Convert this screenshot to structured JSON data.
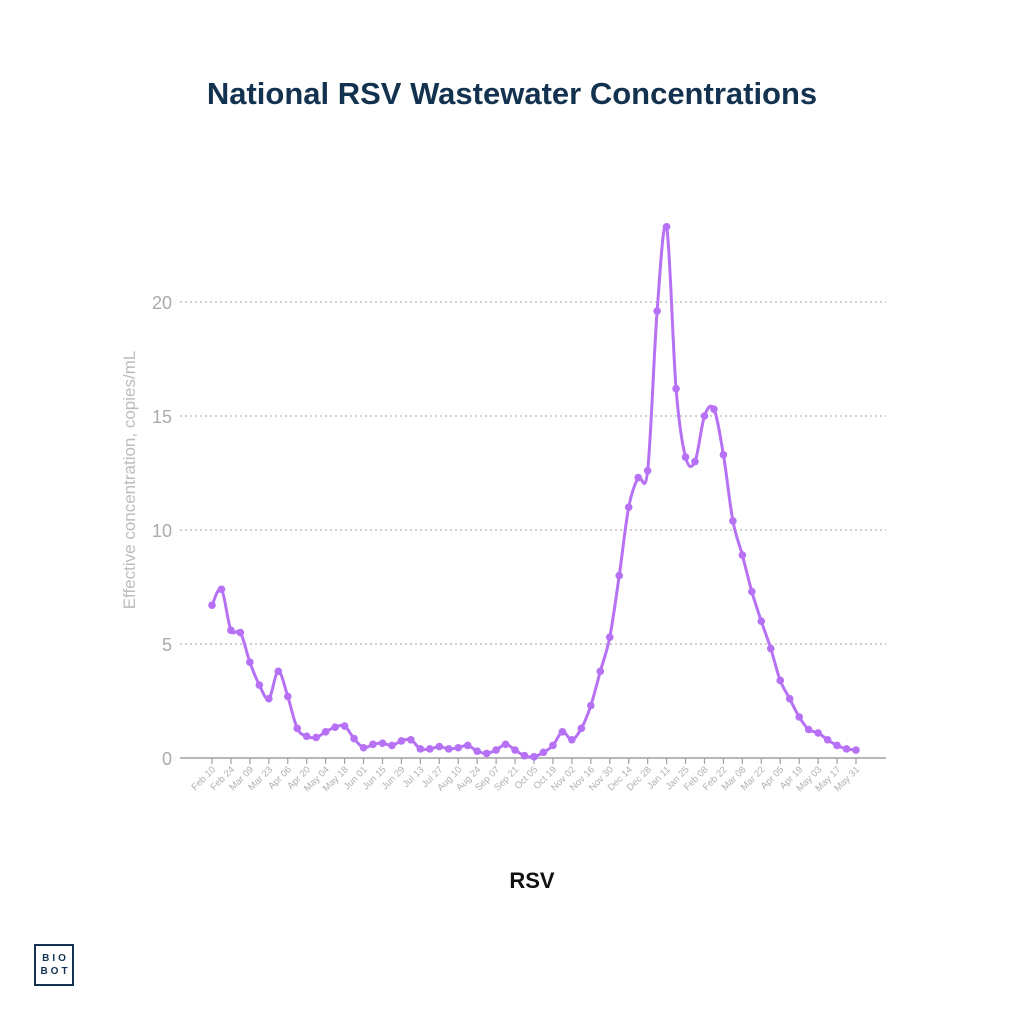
{
  "chart_data": {
    "type": "line",
    "title": "National RSV Wastewater Concentrations",
    "xlabel": "RSV",
    "ylabel": "Effective concentration, copies/mL",
    "ylim": [
      0,
      25
    ],
    "yticks": [
      0,
      5,
      10,
      15,
      20
    ],
    "grid": "horizontal dotted",
    "legend": "none",
    "line_color": "#b671f5",
    "x_tick_labels": [
      "Feb 10",
      "Feb 24",
      "Mar 09",
      "Mar 23",
      "Apr 06",
      "Apr 20",
      "May 04",
      "May 18",
      "Jun 01",
      "Jun 15",
      "Jun 29",
      "Jul 13",
      "Jul 27",
      "Aug 10",
      "Aug 24",
      "Sep 07",
      "Sep 21",
      "Oct 05",
      "Oct 19",
      "Nov 02",
      "Nov 16",
      "Nov 30",
      "Dec 14",
      "Dec 28",
      "Jan 11",
      "Jan 25",
      "Feb 08",
      "Feb 22",
      "Mar 08",
      "Mar 22",
      "Apr 05",
      "Apr 19",
      "May 03",
      "May 17",
      "May 31"
    ],
    "series": [
      {
        "values": [
          6.7,
          7.4,
          5.6,
          5.5,
          4.2,
          3.2,
          2.6,
          3.8,
          2.7,
          1.3,
          0.95,
          0.9,
          1.15,
          1.35,
          1.4,
          0.85,
          0.45,
          0.6,
          0.65,
          0.55,
          0.75,
          0.8,
          0.4,
          0.4,
          0.5,
          0.4,
          0.45,
          0.55,
          0.3,
          0.2,
          0.35,
          0.6,
          0.35,
          0.1,
          0.05,
          0.25,
          0.55,
          1.15,
          0.8,
          1.3,
          2.3,
          3.8,
          5.3,
          8.0,
          11.0,
          12.3,
          12.6,
          19.6,
          23.3,
          16.2,
          13.2,
          13.0,
          15.0,
          15.3,
          13.3,
          10.4,
          8.9,
          7.3,
          6.0,
          4.8,
          3.4,
          2.6,
          1.8,
          1.25,
          1.1,
          0.8,
          0.55,
          0.4,
          0.35
        ]
      }
    ]
  },
  "logo": {
    "line1": "BIO",
    "line2": "BOT"
  }
}
